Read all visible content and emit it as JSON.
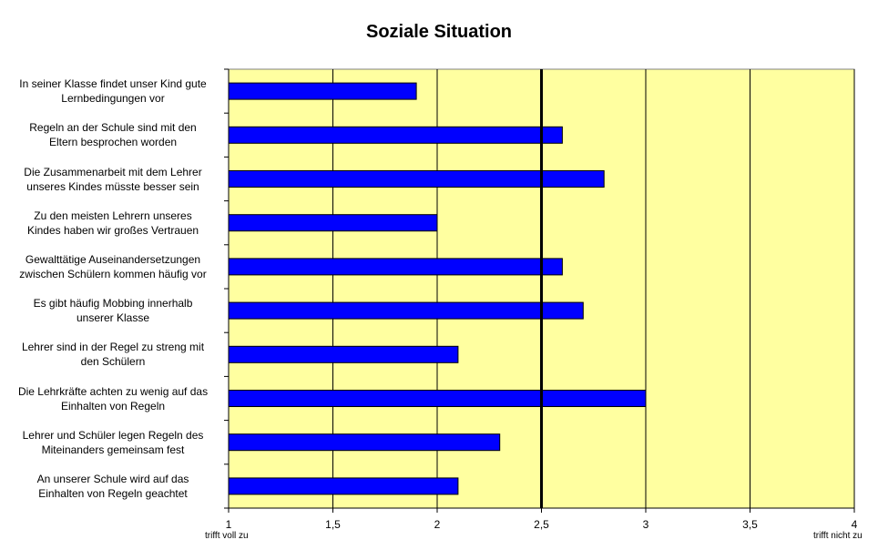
{
  "chart_data": {
    "type": "bar",
    "orientation": "horizontal",
    "title": "Soziale Situation",
    "categories": [
      "In seiner Klasse findet unser Kind gute Lernbedingungen vor",
      "Regeln an der Schule sind mit den Eltern besprochen worden",
      "Die Zusammenarbeit mit dem Lehrer unseres Kindes müsste besser sein",
      "Zu den meisten Lehrern unseres Kindes haben wir großes Vertrauen",
      "Gewalttätige Auseinandersetzungen zwischen Schülern kommen häufig vor",
      "Es gibt häufig Mobbing innerhalb unserer Klasse",
      "Lehrer sind in der Regel zu streng mit den Schülern",
      "Die Lehrkräfte achten zu wenig auf das Einhalten von Regeln",
      "Lehrer und Schüler legen Regeln des Miteinanders gemeinsam fest",
      "An unserer Schule wird auf das Einhalten von Regeln geachtet"
    ],
    "label_lines": [
      [
        "In seiner Klasse findet unser Kind gute",
        "Lernbedingungen vor"
      ],
      [
        "Regeln an der Schule sind mit den",
        "Eltern besprochen worden"
      ],
      [
        "Die Zusammenarbeit mit dem Lehrer",
        "unseres Kindes müsste besser sein"
      ],
      [
        "Zu den meisten Lehrern unseres",
        "Kindes haben wir großes Vertrauen"
      ],
      [
        "Gewalttätige Auseinandersetzungen",
        "zwischen Schülern kommen häufig vor"
      ],
      [
        "Es gibt häufig Mobbing innerhalb",
        "unserer Klasse"
      ],
      [
        "Lehrer sind in der Regel zu streng mit",
        "den Schülern"
      ],
      [
        "Die Lehrkräfte achten zu wenig auf das",
        "Einhalten von Regeln"
      ],
      [
        "Lehrer und Schüler legen Regeln des",
        "Miteinanders gemeinsam fest"
      ],
      [
        "An unserer Schule wird auf das",
        "Einhalten von Regeln geachtet"
      ]
    ],
    "values": [
      1.9,
      2.6,
      2.8,
      2.0,
      2.6,
      2.7,
      2.1,
      3.0,
      2.3,
      2.1
    ],
    "xlim": [
      1,
      4
    ],
    "x_ticks": [
      1,
      1.5,
      2,
      2.5,
      3,
      3.5,
      4
    ],
    "x_tick_labels": [
      "1",
      "1,5",
      "2",
      "2,5",
      "3",
      "3,5",
      "4"
    ],
    "reference_line": 2.5,
    "x_end_labels": {
      "left": "trifft voll zu",
      "right": "trifft nicht zu"
    },
    "grid": true,
    "colors": {
      "bar": "#0000ff",
      "plot_background": "#ffffa0",
      "gridline": "#000000",
      "reference_line": "#000000"
    }
  }
}
